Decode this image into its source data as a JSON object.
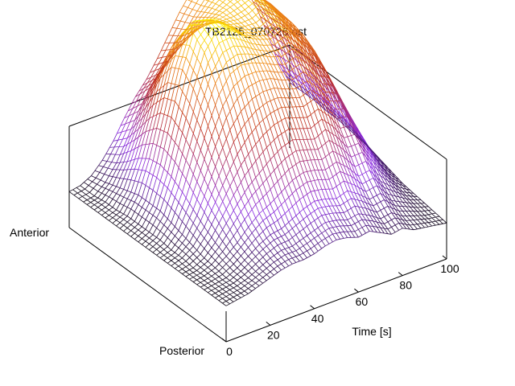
{
  "chart_data": {
    "type": "surface",
    "title": "TB2125_070726.ost",
    "xlabel": "Time [s]",
    "y_axis_labels": {
      "near": "Posterior",
      "far": "Anterior"
    },
    "xlim": [
      0,
      100
    ],
    "x_ticks": [
      0,
      20,
      40,
      60,
      80,
      100
    ],
    "grid": false,
    "colormap": {
      "low": "#000000",
      "mid_low": "#8a2be2",
      "mid": "#c0311e",
      "mid_high": "#f08a14",
      "high": "#ffff00"
    },
    "surface_rows_ap_fraction": [
      0.0,
      0.07,
      0.14,
      0.21,
      0.28,
      0.35,
      0.42,
      0.49,
      0.56,
      0.63,
      0.7,
      0.77,
      0.84,
      0.91,
      1.0
    ],
    "surface_time_s": [
      0,
      5,
      10,
      15,
      20,
      25,
      30,
      35,
      40,
      45,
      50,
      55,
      60,
      65,
      70,
      75,
      80,
      85,
      90,
      95,
      100
    ],
    "surface_z": [
      [
        0.02,
        0.03,
        0.04,
        0.06,
        0.08,
        0.1,
        0.11,
        0.11,
        0.12,
        0.14,
        0.15,
        0.14,
        0.12,
        0.13,
        0.1,
        0.07,
        0.08,
        0.05,
        0.04,
        0.03,
        0.02
      ],
      [
        0.02,
        0.03,
        0.04,
        0.06,
        0.09,
        0.12,
        0.14,
        0.14,
        0.16,
        0.18,
        0.2,
        0.19,
        0.17,
        0.18,
        0.15,
        0.11,
        0.12,
        0.08,
        0.06,
        0.04,
        0.03
      ],
      [
        0.02,
        0.03,
        0.04,
        0.07,
        0.11,
        0.15,
        0.18,
        0.19,
        0.22,
        0.25,
        0.27,
        0.26,
        0.24,
        0.26,
        0.22,
        0.17,
        0.18,
        0.12,
        0.09,
        0.06,
        0.04
      ],
      [
        0.02,
        0.03,
        0.05,
        0.09,
        0.14,
        0.2,
        0.25,
        0.28,
        0.32,
        0.36,
        0.38,
        0.37,
        0.35,
        0.37,
        0.32,
        0.25,
        0.26,
        0.18,
        0.13,
        0.08,
        0.05
      ],
      [
        0.02,
        0.03,
        0.06,
        0.12,
        0.2,
        0.28,
        0.35,
        0.4,
        0.45,
        0.49,
        0.51,
        0.49,
        0.47,
        0.5,
        0.44,
        0.36,
        0.36,
        0.26,
        0.18,
        0.11,
        0.06
      ],
      [
        0.02,
        0.04,
        0.08,
        0.16,
        0.27,
        0.38,
        0.48,
        0.55,
        0.6,
        0.63,
        0.64,
        0.62,
        0.6,
        0.62,
        0.56,
        0.47,
        0.46,
        0.34,
        0.24,
        0.14,
        0.08
      ],
      [
        0.02,
        0.04,
        0.1,
        0.21,
        0.35,
        0.5,
        0.63,
        0.71,
        0.75,
        0.76,
        0.75,
        0.72,
        0.7,
        0.72,
        0.66,
        0.57,
        0.54,
        0.42,
        0.3,
        0.18,
        0.1
      ],
      [
        0.02,
        0.05,
        0.12,
        0.26,
        0.44,
        0.62,
        0.77,
        0.86,
        0.88,
        0.86,
        0.83,
        0.8,
        0.78,
        0.8,
        0.74,
        0.66,
        0.62,
        0.49,
        0.35,
        0.21,
        0.12
      ],
      [
        0.02,
        0.05,
        0.14,
        0.3,
        0.51,
        0.72,
        0.89,
        0.97,
        0.97,
        0.93,
        0.88,
        0.85,
        0.83,
        0.86,
        0.81,
        0.73,
        0.68,
        0.55,
        0.4,
        0.24,
        0.13
      ],
      [
        0.02,
        0.05,
        0.14,
        0.32,
        0.55,
        0.78,
        0.95,
        1.0,
        0.98,
        0.93,
        0.88,
        0.86,
        0.85,
        0.88,
        0.84,
        0.77,
        0.72,
        0.59,
        0.43,
        0.26,
        0.14
      ],
      [
        0.02,
        0.05,
        0.14,
        0.31,
        0.53,
        0.75,
        0.91,
        0.95,
        0.93,
        0.9,
        0.88,
        0.87,
        0.88,
        0.91,
        0.87,
        0.8,
        0.74,
        0.61,
        0.45,
        0.27,
        0.15
      ],
      [
        0.02,
        0.04,
        0.12,
        0.27,
        0.46,
        0.65,
        0.79,
        0.83,
        0.83,
        0.84,
        0.86,
        0.88,
        0.9,
        0.92,
        0.88,
        0.81,
        0.75,
        0.62,
        0.46,
        0.28,
        0.15
      ],
      [
        0.02,
        0.04,
        0.1,
        0.21,
        0.36,
        0.51,
        0.63,
        0.68,
        0.72,
        0.77,
        0.82,
        0.87,
        0.91,
        0.93,
        0.89,
        0.82,
        0.76,
        0.63,
        0.47,
        0.29,
        0.16
      ],
      [
        0.02,
        0.03,
        0.08,
        0.16,
        0.27,
        0.39,
        0.49,
        0.55,
        0.62,
        0.7,
        0.78,
        0.85,
        0.9,
        0.92,
        0.88,
        0.81,
        0.75,
        0.62,
        0.47,
        0.29,
        0.16
      ],
      [
        0.02,
        0.03,
        0.06,
        0.12,
        0.2,
        0.3,
        0.39,
        0.46,
        0.55,
        0.65,
        0.75,
        0.83,
        0.89,
        0.91,
        0.87,
        0.8,
        0.74,
        0.62,
        0.46,
        0.28,
        0.16
      ]
    ]
  }
}
